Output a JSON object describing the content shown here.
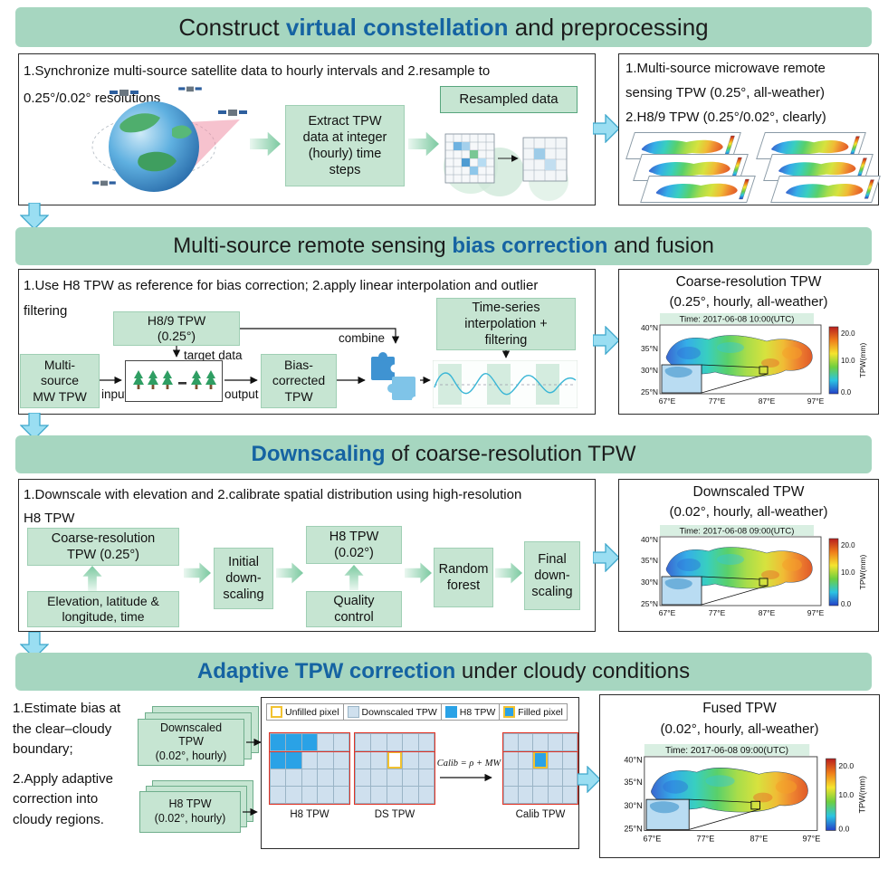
{
  "colors": {
    "banner_green": "#a6d6c0",
    "box_green": "#c6e5d2",
    "highlight_blue": "#1563a2",
    "arrow_blue": "#9adef2",
    "h8_pixel_blue": "#2aa2e6",
    "downscaled_pixel_blue": "#cfe0ee",
    "unfilled_yellow": "#f2c230",
    "boundary_red": "#e23325"
  },
  "s1": {
    "title": {
      "pre": "Construct ",
      "hl": "virtual constellation",
      "post": " and preprocessing"
    },
    "left": {
      "desc": "1.Synchronize multi-source satellite data to hourly intervals and 2.resample to\n0.25°/0.02° resolutions",
      "extract": "Extract TPW\ndata at integer\n(hourly) time\nsteps",
      "resampled": "Resampled data"
    },
    "right": {
      "l1": "1.Multi-source microwave remote",
      "l2": "sensing TPW (0.25°, all-weather)",
      "l3": "2.H8/9 TPW (0.25°/0.02°, clearly)"
    }
  },
  "s2": {
    "title": {
      "pre": "Multi-source remote sensing ",
      "hl": "bias correction",
      "post": " and fusion"
    },
    "left": {
      "desc": "1.Use H8 TPW as reference for bias correction; 2.apply linear interpolation and outlier\nfiltering",
      "h8": "H8/9 TPW\n(0.25°)",
      "target": "target data",
      "mw": "Multi-\nsource\nMW TPW",
      "input": "input",
      "output": "output",
      "bias": "Bias-\ncorrected\nTPW",
      "combine": "combine",
      "ts": "Time-series\ninterpolation +\nfiltering"
    },
    "right": {
      "t1": "Coarse-resolution TPW",
      "t2": "(0.25°, hourly, all-weather)",
      "time": "Time: 2017-06-08 10:00(UTC)"
    }
  },
  "s3": {
    "title": {
      "pre": "",
      "hl": "Downscaling",
      "post": " of coarse-resolution TPW"
    },
    "left": {
      "desc": "1.Downscale with elevation and 2.calibrate spatial distribution using high-resolution\nH8 TPW",
      "coarse": "Coarse-resolution\nTPW (0.25°)",
      "elev": "Elevation, latitude &\nlongitude, time",
      "initial": "Initial\ndown-\nscaling",
      "h8": "H8 TPW\n(0.02°)",
      "qc": "Quality\ncontrol",
      "rf": "Random\nforest",
      "final": "Final\ndown-\nscaling"
    },
    "right": {
      "t1": "Downscaled TPW",
      "t2": "(0.02°, hourly, all-weather)",
      "time": "Time: 2017-06-08 09:00(UTC)"
    }
  },
  "s4": {
    "title": {
      "pre": "",
      "hl": "Adaptive TPW correction",
      "post": " under cloudy conditions"
    },
    "left": {
      "desc1": "1.Estimate bias at the clear–cloudy boundary;",
      "desc2": "2.Apply adaptive correction into cloudy regions.",
      "ds_stack": "Downscaled\nTPW\n(0.02°, hourly)",
      "h8_stack": "H8 TPW\n(0.02°, hourly)",
      "legend": [
        {
          "label": "Unfilled pixel",
          "swatch": "unfilled"
        },
        {
          "label": "Downscaled TPW",
          "swatch": "downscaled"
        },
        {
          "label": "H8 TPW",
          "swatch": "h8"
        },
        {
          "label": "Filled pixel",
          "swatch": "filled"
        }
      ],
      "grid1_label": "H8 TPW",
      "grid2_label": "DS TPW",
      "grid3_label": "Calib TPW",
      "grid1_cells": [
        "BBBLL",
        "BBLLL",
        "LLLLL",
        "LLLLL"
      ],
      "grid2_cells": [
        "LLLLL",
        "LLULL",
        "LLLLL",
        "LLLLL"
      ],
      "grid3_cells": [
        "LLLLL",
        "LLFLL",
        "LLLLL",
        "LLLLL"
      ],
      "formula": "Calib = ρ + MW"
    },
    "right": {
      "t1": "Fused TPW",
      "t2": "(0.02°, hourly, all-weather)",
      "time": "Time: 2017-06-08 09:00(UTC)"
    }
  },
  "map_axes": {
    "y": [
      "40°N",
      "35°N",
      "30°N",
      "25°N"
    ],
    "x": [
      "67°E",
      "77°E",
      "87°E",
      "97°E"
    ],
    "cb": [
      "20.0",
      "10.0",
      "0.0"
    ],
    "cb_label": "TPW(mm)"
  }
}
